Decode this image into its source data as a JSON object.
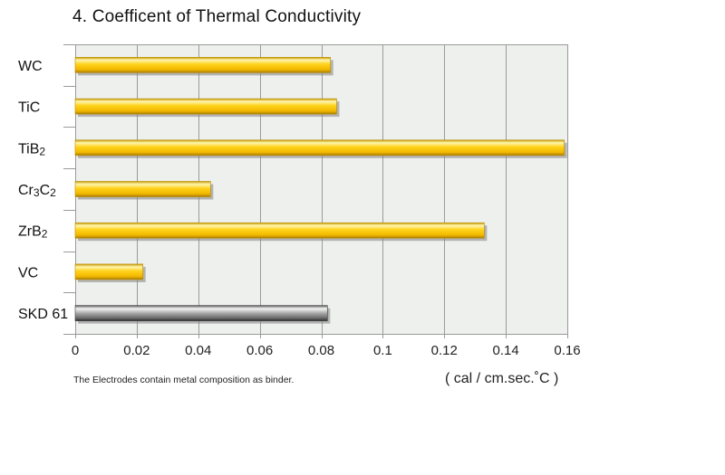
{
  "chart_data": {
    "type": "bar",
    "orientation": "horizontal",
    "title": "4. Coefficent of Thermal Conductivity",
    "categories": [
      {
        "base": "WC",
        "sub": ""
      },
      {
        "base": "TiC",
        "sub": ""
      },
      {
        "base": "TiB",
        "sub": "2"
      },
      {
        "base": "Cr",
        "sub": "3",
        "base2": "C",
        "sub2": "2"
      },
      {
        "base": "ZrB",
        "sub": "2"
      },
      {
        "base": "VC",
        "sub": ""
      },
      {
        "base": "SKD 61",
        "sub": ""
      }
    ],
    "values": [
      0.083,
      0.085,
      0.159,
      0.044,
      0.133,
      0.022,
      0.082
    ],
    "bar_styles": [
      "gold",
      "gold",
      "gold",
      "gold",
      "gold",
      "gold",
      "silver"
    ],
    "x_ticks": [
      "0",
      "0.02",
      "0.04",
      "0.06",
      "0.08",
      "0.1",
      "0.12",
      "0.14",
      "0.16"
    ],
    "xlim": [
      0,
      0.16
    ],
    "xlabel": "( cal / cm.sec.˚C )",
    "ylabel": "",
    "grid": true,
    "footnote": "The Electrodes contain metal composition as binder."
  },
  "colors": {
    "plot_bg": "#eef0ee",
    "grid": "#9a9a9a",
    "gold_light": "#fff3a0",
    "gold_mid": "#ffcc00",
    "gold_dark": "#b88a00",
    "silver_light": "#f2f2f2",
    "silver_mid": "#9a9a9a",
    "silver_dark": "#3c3c3c",
    "shadow": "#8a8a8a"
  }
}
